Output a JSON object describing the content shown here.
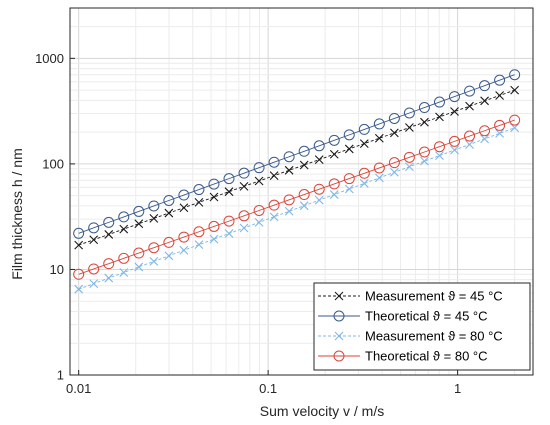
{
  "chart_data": {
    "type": "line",
    "xscale": "log",
    "yscale": "log",
    "xlim": [
      0.009,
      2.5
    ],
    "ylim": [
      1,
      3000
    ],
    "grid": true,
    "legend_position": "bottom-right",
    "xlabel": "Sum velocity  v / m/s",
    "ylabel": "Film thickness  h / nm",
    "x_ticks": [
      0.01,
      0.1,
      1
    ],
    "x_tick_labels": [
      "0.01",
      "0.1",
      "1"
    ],
    "y_ticks": [
      1,
      10,
      100,
      1000
    ],
    "y_tick_labels": [
      "1",
      "10",
      "100",
      "1000"
    ],
    "x_range": [
      0.01,
      2
    ],
    "n_points": 30,
    "series": [
      {
        "name": "Measurement  ϑ = 45 °C",
        "color": "#1a1a1a",
        "marker": "x",
        "line": "dashed",
        "y_start": 17,
        "y_end": 500
      },
      {
        "name": "Theoretical  ϑ = 45 °C",
        "color": "#3a5a8c",
        "marker": "o",
        "line": "solid",
        "y_start": 22,
        "y_end": 700
      },
      {
        "name": "Measurement  ϑ = 80 °C",
        "color": "#7fb6e6",
        "marker": "x",
        "line": "dashed",
        "y_start": 6.5,
        "y_end": 220
      },
      {
        "name": "Theoretical  ϑ = 80 °C",
        "color": "#d9463a",
        "marker": "o",
        "line": "solid",
        "y_start": 9,
        "y_end": 260
      }
    ]
  }
}
